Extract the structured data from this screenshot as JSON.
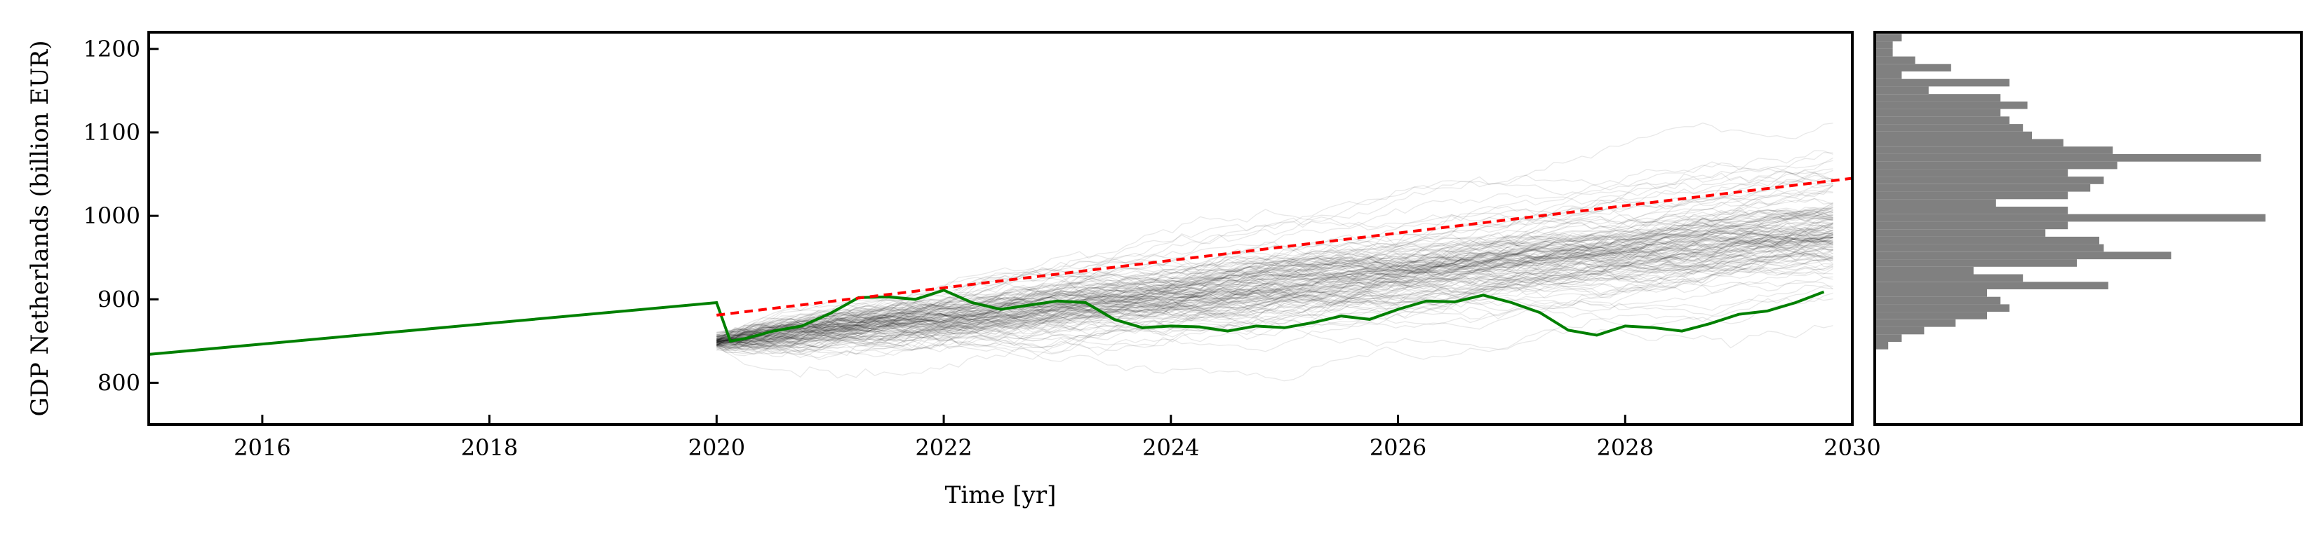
{
  "chart_data": [
    {
      "type": "line",
      "title": "",
      "xlabel": "Time [yr]",
      "ylabel": "GDP Netherlands (billion EUR)",
      "xlim": [
        2015,
        2030
      ],
      "ylim": [
        750,
        1220
      ],
      "xticks": [
        2016,
        2018,
        2020,
        2022,
        2024,
        2026,
        2028,
        2030
      ],
      "xtick_labels": [
        "2016",
        "2018",
        "2020",
        "2022",
        "2024",
        "2026",
        "2028",
        "2030"
      ],
      "yticks": [
        800,
        900,
        1000,
        1100,
        1200
      ],
      "ytick_labels": [
        "800",
        "900",
        "1000",
        "1100",
        "1200"
      ],
      "grid": false,
      "legend": "none",
      "series": [
        {
          "role": "historical-and-realized",
          "color": "#008000",
          "style": "solid",
          "x": [
            2015.0,
            2020.0,
            2020.12,
            2020.25,
            2020.5,
            2020.75,
            2021.0,
            2021.25,
            2021.5,
            2021.75,
            2022.0,
            2022.25,
            2022.5,
            2022.75,
            2023.0,
            2023.25,
            2023.5,
            2023.75,
            2024.0,
            2024.25,
            2024.5,
            2024.75,
            2025.0,
            2025.25,
            2025.5,
            2025.75,
            2026.0,
            2026.25,
            2026.5,
            2026.75,
            2027.0,
            2027.25,
            2027.5,
            2027.75,
            2028.0,
            2028.25,
            2028.5,
            2028.75,
            2029.0,
            2029.25,
            2029.5,
            2029.75
          ],
          "y": [
            834,
            896,
            850,
            853,
            862,
            868,
            883,
            902,
            903,
            900,
            911,
            896,
            888,
            893,
            898,
            896,
            876,
            866,
            868,
            867,
            862,
            868,
            866,
            872,
            880,
            876,
            888,
            898,
            897,
            905,
            896,
            884,
            863,
            857,
            868,
            866,
            862,
            871,
            882,
            886,
            896,
            909
          ]
        },
        {
          "role": "trend-forecast",
          "color": "#ff0000",
          "style": "dashed",
          "x": [
            2020.0,
            2030.0
          ],
          "y": [
            881,
            1045
          ]
        }
      ],
      "simulated_paths": {
        "color": "#000000",
        "x_range": [
          2020.0,
          2029.83
        ],
        "start_value": 850,
        "drift_end_value": 1000,
        "spread_end_range": [
          800,
          1210
        ]
      }
    },
    {
      "type": "bar",
      "orientation": "horizontal",
      "color": "#808080",
      "ylim": [
        750,
        1220
      ],
      "bin_width": 9,
      "bin_edges_start": 840,
      "counts": [
        3,
        6,
        11,
        18,
        25,
        30,
        28,
        25,
        52,
        33,
        22,
        45,
        66,
        51,
        50,
        38,
        43,
        87,
        43,
        27,
        43,
        48,
        51,
        43,
        54,
        86,
        53,
        42,
        35,
        33,
        30,
        28,
        34,
        28,
        12,
        30,
        6,
        17,
        9,
        4,
        4,
        6
      ],
      "max_count": 95
    }
  ]
}
